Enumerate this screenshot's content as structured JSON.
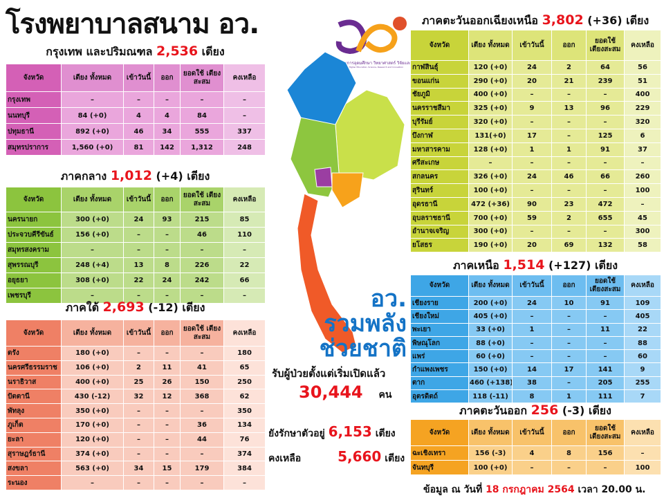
{
  "title": "โรงพยาบาลสนาม อว.",
  "logo": {
    "text": "กระทรวงการอุดมศึกษา วิทยาศาสตร์ วิจัยและนวัตกรรม",
    "subtext": "Ministry of Higher Education, Science, Research and Innovation"
  },
  "columns": [
    "จังหวัด",
    "เตียง ทั้งหมด",
    "เข้าวันนี้",
    "ออก",
    "ยอดใช้ เตียงสะสม",
    "คงเหลือ"
  ],
  "unit": "เตียง",
  "regions": {
    "bangkok": {
      "label": "กรุงเทพ และปริมณฑล",
      "total": "2,536",
      "change": "",
      "colors": {
        "first": "#d460b6",
        "head": "#e08fd0",
        "cell": "#eaa6dc",
        "last": "#efbfe6"
      },
      "rows": [
        [
          "กรุงเทพ",
          "–",
          "–",
          "–",
          "–",
          "–"
        ],
        [
          "นนทบุรี",
          "84 (+0)",
          "4",
          "4",
          "84",
          "–"
        ],
        [
          "ปทุมธานี",
          "892 (+0)",
          "46",
          "34",
          "555",
          "337"
        ],
        [
          "สมุทรปราการ",
          "1,560 (+0)",
          "81",
          "142",
          "1,312",
          "248"
        ]
      ]
    },
    "central": {
      "label": "ภาคกลาง",
      "total": "1,012",
      "change": "(+4)",
      "colors": {
        "first": "#8cc43e",
        "head": "#a9d36a",
        "cell": "#bcdc8a",
        "last": "#d6eab5"
      },
      "rows": [
        [
          "นครนายก",
          "300 (+0)",
          "24",
          "93",
          "215",
          "85"
        ],
        [
          "ประจวบคีรีขันธ์",
          "156 (+0)",
          "–",
          "–",
          "46",
          "110"
        ],
        [
          "สมุทรสงคราม",
          "–",
          "–",
          "–",
          "–",
          "–"
        ],
        [
          "สุพรรณบุรี",
          "248 (+4)",
          "13",
          "8",
          "226",
          "22"
        ],
        [
          "อยุธยา",
          "308 (+0)",
          "22",
          "24",
          "242",
          "66"
        ],
        [
          "เพชรบุรี",
          "–",
          "–",
          "–",
          "–",
          "–"
        ]
      ]
    },
    "south": {
      "label": "ภาคใต้",
      "total": "2,693",
      "change": "(-12)",
      "colors": {
        "first": "#ef8065",
        "head": "#f6b29e",
        "cell": "#f9cbbd",
        "last": "#fde2d9"
      },
      "rows": [
        [
          "ตรัง",
          "180 (+0)",
          "–",
          "–",
          "–",
          "180"
        ],
        [
          "นครศรีธรรมราช",
          "106 (+0)",
          "2",
          "11",
          "41",
          "65"
        ],
        [
          "นราธิวาส",
          "400 (+0)",
          "25",
          "26",
          "150",
          "250"
        ],
        [
          "ปัตตานี",
          "430 (-12)",
          "32",
          "12",
          "368",
          "62"
        ],
        [
          "พัทลุง",
          "350 (+0)",
          "–",
          "–",
          "–",
          "350"
        ],
        [
          "ภูเก็ต",
          "170 (+0)",
          "–",
          "–",
          "36",
          "134"
        ],
        [
          "ยะลา",
          "120 (+0)",
          "–",
          "–",
          "44",
          "76"
        ],
        [
          "สุราษฎร์ธานี",
          "374 (+0)",
          "–",
          "–",
          "–",
          "374"
        ],
        [
          "สงขลา",
          "563 (+0)",
          "34",
          "15",
          "179",
          "384"
        ],
        [
          "ระนอง",
          "–",
          "–",
          "–",
          "–",
          "–"
        ]
      ]
    },
    "northeast": {
      "label": "ภาคตะวันออกเฉียงเหนือ",
      "total": "3,802",
      "change": "(+36)",
      "colors": {
        "first": "#c8d43a",
        "head": "#dde479",
        "cell": "#e5ea96",
        "last": "#eef2bd"
      },
      "rows": [
        [
          "กาฬสินธุ์",
          "120 (+0)",
          "24",
          "2",
          "64",
          "56"
        ],
        [
          "ขอนแก่น",
          "290 (+0)",
          "20",
          "21",
          "239",
          "51"
        ],
        [
          "ชัยภูมิ",
          "400 (+0)",
          "–",
          "–",
          "–",
          "400"
        ],
        [
          "นครราชสีมา",
          "325 (+0)",
          "9",
          "13",
          "96",
          "229"
        ],
        [
          "บุรีรัมย์",
          "320 (+0)",
          "–",
          "–",
          "–",
          "320"
        ],
        [
          "บึงกาฬ",
          "131(+0)",
          "17",
          "–",
          "125",
          "6"
        ],
        [
          "มหาสารคาม",
          "128 (+0)",
          "1",
          "1",
          "91",
          "37"
        ],
        [
          "ศรีสะเกษ",
          "–",
          "–",
          "–",
          "–",
          "–"
        ],
        [
          "สกลนคร",
          "326 (+0)",
          "24",
          "46",
          "66",
          "260"
        ],
        [
          "สุรินทร์",
          "100 (+0)",
          "–",
          "–",
          "–",
          "100"
        ],
        [
          "อุดรธานี",
          "472 (+36)",
          "90",
          "23",
          "472",
          "–"
        ],
        [
          "อุบลราชธานี",
          "700 (+0)",
          "59",
          "2",
          "655",
          "45"
        ],
        [
          "อำนาจเจริญ",
          "300 (+0)",
          "–",
          "–",
          "–",
          "300"
        ],
        [
          "ยโสธร",
          "190 (+0)",
          "20",
          "69",
          "132",
          "58"
        ]
      ]
    },
    "north": {
      "label": "ภาคเหนือ",
      "total": "1,514",
      "change": "(+127)",
      "colors": {
        "first": "#3ea6e6",
        "head": "#6dbdf0",
        "cell": "#86c9f3",
        "last": "#a8d8f7"
      },
      "rows": [
        [
          "เชียงราย",
          "200 (+0)",
          "24",
          "10",
          "91",
          "109"
        ],
        [
          "เชียงใหม่",
          "405 (+0)",
          "–",
          "–",
          "–",
          "405"
        ],
        [
          "พะเยา",
          "33 (+0)",
          "1",
          "–",
          "11",
          "22"
        ],
        [
          "พิษณุโลก",
          "88 (+0)",
          "–",
          "–",
          "–",
          "88"
        ],
        [
          "แพร่",
          "60 (+0)",
          "–",
          "–",
          "–",
          "60"
        ],
        [
          "กำแพงเพชร",
          "150 (+0)",
          "14",
          "17",
          "141",
          "9"
        ],
        [
          "ตาก",
          "460 (+138)",
          "38",
          "–",
          "205",
          "255"
        ],
        [
          "อุตรดิตถ์",
          "118 (-11)",
          "8",
          "1",
          "111",
          "7"
        ]
      ]
    },
    "east": {
      "label": "ภาคตะวันออก",
      "total": "256",
      "change": "(-3)",
      "colors": {
        "first": "#f5a322",
        "head": "#f8c26a",
        "cell": "#fad08a",
        "last": "#fce0b0"
      },
      "rows": [
        [
          "ฉะเชิงเทรา",
          "156 (-3)",
          "4",
          "8",
          "156",
          "–"
        ],
        [
          "จันทบุรี",
          "100 (+0)",
          "–",
          "–",
          "–",
          "100"
        ]
      ]
    }
  },
  "center": {
    "line1": "อว.",
    "line2": "รวมพลัง",
    "line3": "ช่วยชาติ",
    "admitted_label": "รับผู้ป่วยตั้งแต่เริ่มเปิดแล้ว",
    "admitted": "30,444",
    "admitted_unit": "คน",
    "treating_label": "ยังรักษาตัวอยู่",
    "treating": "6,153",
    "remaining_label": "คงเหลือ",
    "remaining": "5,660",
    "bed_unit": "เตียง"
  },
  "footer": {
    "prefix": "ข้อมูล ณ วันที่",
    "date": "18 กรกฎาคม 2564",
    "time_label": "เวลา",
    "time": "20.00 น."
  },
  "map_colors": {
    "north": "#1b86d6",
    "northeast": "#c9e04a",
    "central": "#8dc63f",
    "bangkok": "#9b3ea2",
    "east": "#f7a21b",
    "south": "#f05a28"
  }
}
